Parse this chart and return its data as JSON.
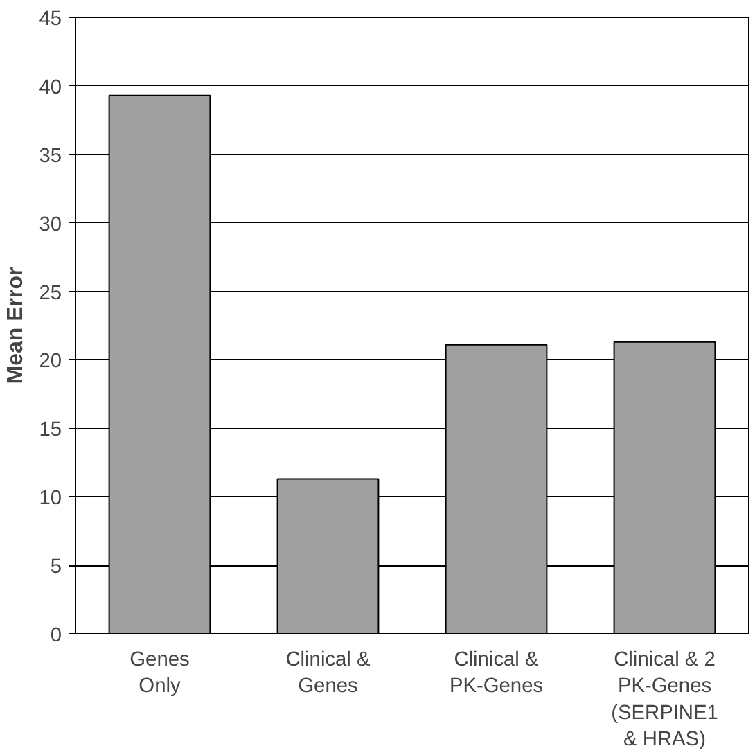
{
  "chart_data": {
    "type": "bar",
    "ylabel": "Mean Error",
    "categories": [
      "Genes\nOnly",
      "Clinical &\nGenes",
      "Clinical &\nPK-Genes",
      "Clinical & 2\nPK-Genes\n(SERPINE1\n& HRAS)"
    ],
    "values": [
      39.3,
      11.3,
      21.1,
      21.3
    ],
    "color": "#a0a0a0",
    "ylim": [
      0,
      45
    ],
    "yticks": [
      0,
      5,
      10,
      15,
      20,
      25,
      30,
      35,
      40,
      45
    ],
    "grid": "y"
  }
}
